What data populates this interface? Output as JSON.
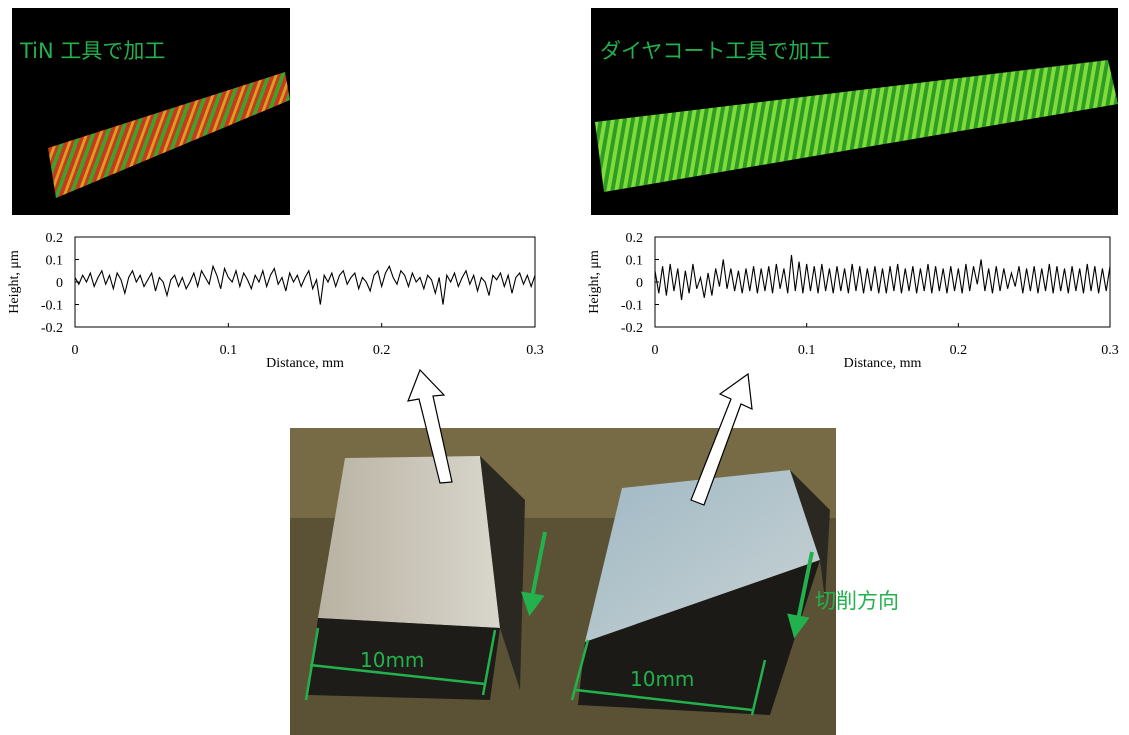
{
  "panels": [
    {
      "label": "TiN 工具で加工"
    },
    {
      "label": "ダイヤコート工具で加工"
    }
  ],
  "photo": {
    "dimension_labels": [
      "10mm",
      "10mm"
    ],
    "direction_label": "切削方向"
  },
  "chart_data": [
    {
      "type": "line",
      "x_label": "Distance, mm",
      "y_label": "Height, μm",
      "color": "#000000",
      "xlim": [
        0,
        0.3
      ],
      "xticks": [
        0,
        0.1,
        0.2,
        0.3
      ],
      "ylim": [
        -0.2,
        0.2
      ],
      "yticks": [
        0.2,
        0.1,
        0,
        -0.1,
        -0.2
      ],
      "x": [
        0,
        0.0025,
        0.005,
        0.0075,
        0.01,
        0.0125,
        0.015,
        0.0175,
        0.02,
        0.0225,
        0.025,
        0.0275,
        0.03,
        0.0325,
        0.035,
        0.0375,
        0.04,
        0.0425,
        0.045,
        0.0475,
        0.05,
        0.0525,
        0.055,
        0.0575,
        0.06,
        0.0625,
        0.065,
        0.0675,
        0.07,
        0.0725,
        0.075,
        0.0775,
        0.08,
        0.0825,
        0.085,
        0.0875,
        0.09,
        0.0925,
        0.095,
        0.0975,
        0.1,
        0.1025,
        0.105,
        0.1075,
        0.11,
        0.1125,
        0.115,
        0.1175,
        0.12,
        0.1225,
        0.125,
        0.1275,
        0.13,
        0.1325,
        0.135,
        0.1375,
        0.14,
        0.1425,
        0.145,
        0.1475,
        0.15,
        0.1525,
        0.155,
        0.1575,
        0.16,
        0.1625,
        0.165,
        0.1675,
        0.17,
        0.1725,
        0.175,
        0.1775,
        0.18,
        0.1825,
        0.185,
        0.1875,
        0.19,
        0.1925,
        0.195,
        0.1975,
        0.2,
        0.2025,
        0.205,
        0.2075,
        0.21,
        0.2125,
        0.215,
        0.2175,
        0.22,
        0.2225,
        0.225,
        0.2275,
        0.23,
        0.2325,
        0.235,
        0.2375,
        0.24,
        0.2425,
        0.245,
        0.2475,
        0.25,
        0.2525,
        0.255,
        0.2575,
        0.26,
        0.2625,
        0.265,
        0.2675,
        0.27,
        0.2725,
        0.275,
        0.2775,
        0.28,
        0.2825,
        0.285,
        0.2875,
        0.29,
        0.2925,
        0.295,
        0.2975,
        0.3
      ],
      "values": [
        0.02,
        -0.01,
        0.03,
        0.0,
        0.04,
        -0.02,
        0.02,
        0.05,
        -0.01,
        0.03,
        -0.03,
        0.04,
        0.01,
        -0.05,
        0.02,
        0.05,
        0.0,
        0.03,
        -0.02,
        0.01,
        0.04,
        -0.04,
        0.02,
        0.0,
        -0.06,
        0.01,
        0.03,
        -0.02,
        0.02,
        -0.03,
        0.0,
        0.04,
        -0.02,
        0.05,
        0.02,
        -0.01,
        0.07,
        0.03,
        -0.03,
        0.06,
        0.02,
        0.0,
        0.05,
        -0.02,
        0.04,
        0.01,
        -0.03,
        0.03,
        0.0,
        0.05,
        -0.02,
        0.03,
        0.06,
        -0.01,
        0.02,
        -0.04,
        0.04,
        0.0,
        0.03,
        -0.02,
        0.02,
        0.05,
        -0.03,
        0.01,
        -0.1,
        0.03,
        0.0,
        0.04,
        -0.02,
        0.03,
        0.05,
        -0.01,
        0.02,
        0.04,
        -0.03,
        0.02,
        0.0,
        -0.04,
        0.03,
        0.05,
        -0.02,
        0.04,
        0.07,
        0.02,
        -0.01,
        0.05,
        0.03,
        -0.02,
        0.04,
        0.0,
        0.02,
        -0.03,
        0.03,
        0.01,
        -0.05,
        0.02,
        -0.1,
        0.03,
        0.0,
        0.04,
        -0.02,
        0.02,
        0.05,
        -0.01,
        0.03,
        -0.04,
        0.02,
        0.0,
        -0.06,
        0.03,
        0.01,
        0.04,
        -0.02,
        0.03,
        -0.05,
        0.02,
        0.04,
        -0.01,
        0.03,
        -0.02,
        0.03
      ]
    },
    {
      "type": "line",
      "x_label": "Distance, mm",
      "y_label": "Height, μm",
      "color": "#000000",
      "xlim": [
        0,
        0.3
      ],
      "xticks": [
        0,
        0.1,
        0.2,
        0.3
      ],
      "ylim": [
        -0.2,
        0.2
      ],
      "yticks": [
        0.2,
        0.1,
        0,
        -0.1,
        -0.2
      ],
      "x": [
        0,
        0.0025,
        0.005,
        0.0075,
        0.01,
        0.0125,
        0.015,
        0.0175,
        0.02,
        0.0225,
        0.025,
        0.0275,
        0.03,
        0.0325,
        0.035,
        0.0375,
        0.04,
        0.0425,
        0.045,
        0.0475,
        0.05,
        0.0525,
        0.055,
        0.0575,
        0.06,
        0.0625,
        0.065,
        0.0675,
        0.07,
        0.0725,
        0.075,
        0.0775,
        0.08,
        0.0825,
        0.085,
        0.0875,
        0.09,
        0.0925,
        0.095,
        0.0975,
        0.1,
        0.1025,
        0.105,
        0.1075,
        0.11,
        0.1125,
        0.115,
        0.1175,
        0.12,
        0.1225,
        0.125,
        0.1275,
        0.13,
        0.1325,
        0.135,
        0.1375,
        0.14,
        0.1425,
        0.145,
        0.1475,
        0.15,
        0.1525,
        0.155,
        0.1575,
        0.16,
        0.1625,
        0.165,
        0.1675,
        0.17,
        0.1725,
        0.175,
        0.1775,
        0.18,
        0.1825,
        0.185,
        0.1875,
        0.19,
        0.1925,
        0.195,
        0.1975,
        0.2,
        0.2025,
        0.205,
        0.2075,
        0.21,
        0.2125,
        0.215,
        0.2175,
        0.22,
        0.2225,
        0.225,
        0.2275,
        0.23,
        0.2325,
        0.235,
        0.2375,
        0.24,
        0.2425,
        0.245,
        0.2475,
        0.25,
        0.2525,
        0.255,
        0.2575,
        0.26,
        0.2625,
        0.265,
        0.2675,
        0.27,
        0.2725,
        0.275,
        0.2775,
        0.28,
        0.2825,
        0.285,
        0.2875,
        0.29,
        0.2925,
        0.295,
        0.2975,
        0.3
      ],
      "values": [
        0.05,
        -0.05,
        0.07,
        -0.06,
        0.08,
        -0.04,
        0.06,
        -0.08,
        0.05,
        -0.05,
        0.08,
        -0.03,
        0.02,
        -0.07,
        0.04,
        -0.06,
        0.06,
        -0.02,
        0.1,
        -0.03,
        0.06,
        -0.04,
        0.05,
        -0.05,
        0.06,
        -0.04,
        0.07,
        -0.05,
        0.06,
        -0.04,
        0.07,
        -0.05,
        0.08,
        -0.03,
        0.06,
        -0.05,
        0.12,
        -0.04,
        0.09,
        -0.05,
        0.08,
        -0.04,
        0.07,
        -0.05,
        0.08,
        -0.04,
        0.06,
        -0.05,
        0.07,
        -0.04,
        0.06,
        -0.05,
        0.08,
        -0.04,
        0.07,
        -0.05,
        0.06,
        -0.04,
        0.07,
        -0.05,
        0.06,
        -0.05,
        0.07,
        -0.04,
        0.08,
        -0.05,
        0.06,
        -0.04,
        0.07,
        -0.05,
        0.06,
        -0.04,
        0.08,
        -0.05,
        0.07,
        -0.04,
        0.06,
        -0.05,
        0.07,
        -0.04,
        0.06,
        -0.05,
        0.08,
        -0.04,
        0.07,
        -0.01,
        0.1,
        -0.04,
        0.06,
        -0.05,
        0.07,
        -0.04,
        0.06,
        -0.03,
        0.04,
        -0.02,
        0.07,
        -0.05,
        0.06,
        -0.04,
        0.07,
        -0.05,
        0.06,
        -0.04,
        0.08,
        -0.05,
        0.07,
        -0.04,
        0.06,
        -0.05,
        0.07,
        -0.04,
        0.06,
        -0.05,
        0.08,
        -0.04,
        0.07,
        -0.05,
        0.06,
        -0.04,
        0.07
      ]
    }
  ]
}
